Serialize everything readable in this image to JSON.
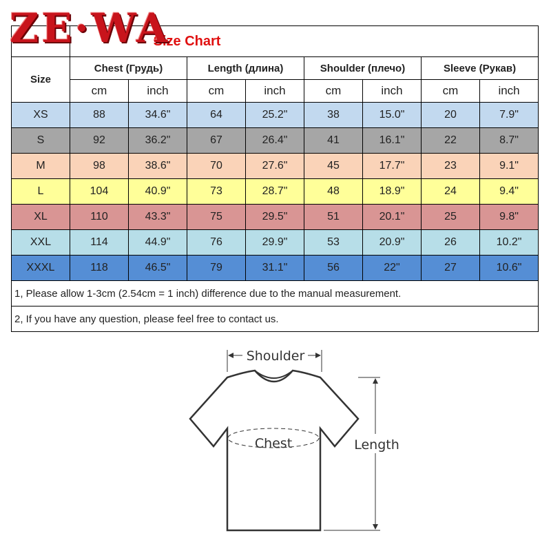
{
  "logo": "ZE·WA",
  "title": "Size Chart",
  "headers": {
    "size": "Size",
    "chest": "Chest  (Грудь)",
    "length": "Length (длина)",
    "shoulder": "Shoulder (плечо)",
    "sleeve": "Sleeve (Рукав)",
    "cm": "cm",
    "inch": "inch"
  },
  "rows": [
    {
      "size": "XS",
      "color": "#c2d9ef",
      "v": [
        "88",
        "34.6\"",
        "64",
        "25.2\"",
        "38",
        "15.0\"",
        "20",
        "7.9\""
      ]
    },
    {
      "size": "S",
      "color": "#a6a6a6",
      "v": [
        "92",
        "36.2\"",
        "67",
        "26.4\"",
        "41",
        "16.1\"",
        "22",
        "8.7\""
      ]
    },
    {
      "size": "M",
      "color": "#fad3b8",
      "v": [
        "98",
        "38.6\"",
        "70",
        "27.6\"",
        "45",
        "17.7\"",
        "23",
        "9.1\""
      ]
    },
    {
      "size": "L",
      "color": "#ffff99",
      "v": [
        "104",
        "40.9\"",
        "73",
        "28.7\"",
        "48",
        "18.9\"",
        "24",
        "9.4\""
      ]
    },
    {
      "size": "XL",
      "color": "#d99594",
      "v": [
        "110",
        "43.3\"",
        "75",
        "29.5\"",
        "51",
        "20.1\"",
        "25",
        "9.8\""
      ]
    },
    {
      "size": "XXL",
      "color": "#b7dee8",
      "v": [
        "114",
        "44.9\"",
        "76",
        "29.9\"",
        "53",
        "20.9\"",
        "26",
        "10.2\""
      ]
    },
    {
      "size": "XXXL",
      "color": "#558ed5",
      "v": [
        "118",
        "46.5\"",
        "79",
        "31.1\"",
        "56",
        "22\"",
        "27",
        "10.6\""
      ]
    }
  ],
  "notes": [
    "1, Please allow 1-3cm (2.54cm = 1 inch) difference due to the manual measurement.",
    "2, If you have any question, please feel free to contact us."
  ],
  "diagram": {
    "shoulder": "Shoulder",
    "chest": "Chest",
    "length": "Length"
  }
}
